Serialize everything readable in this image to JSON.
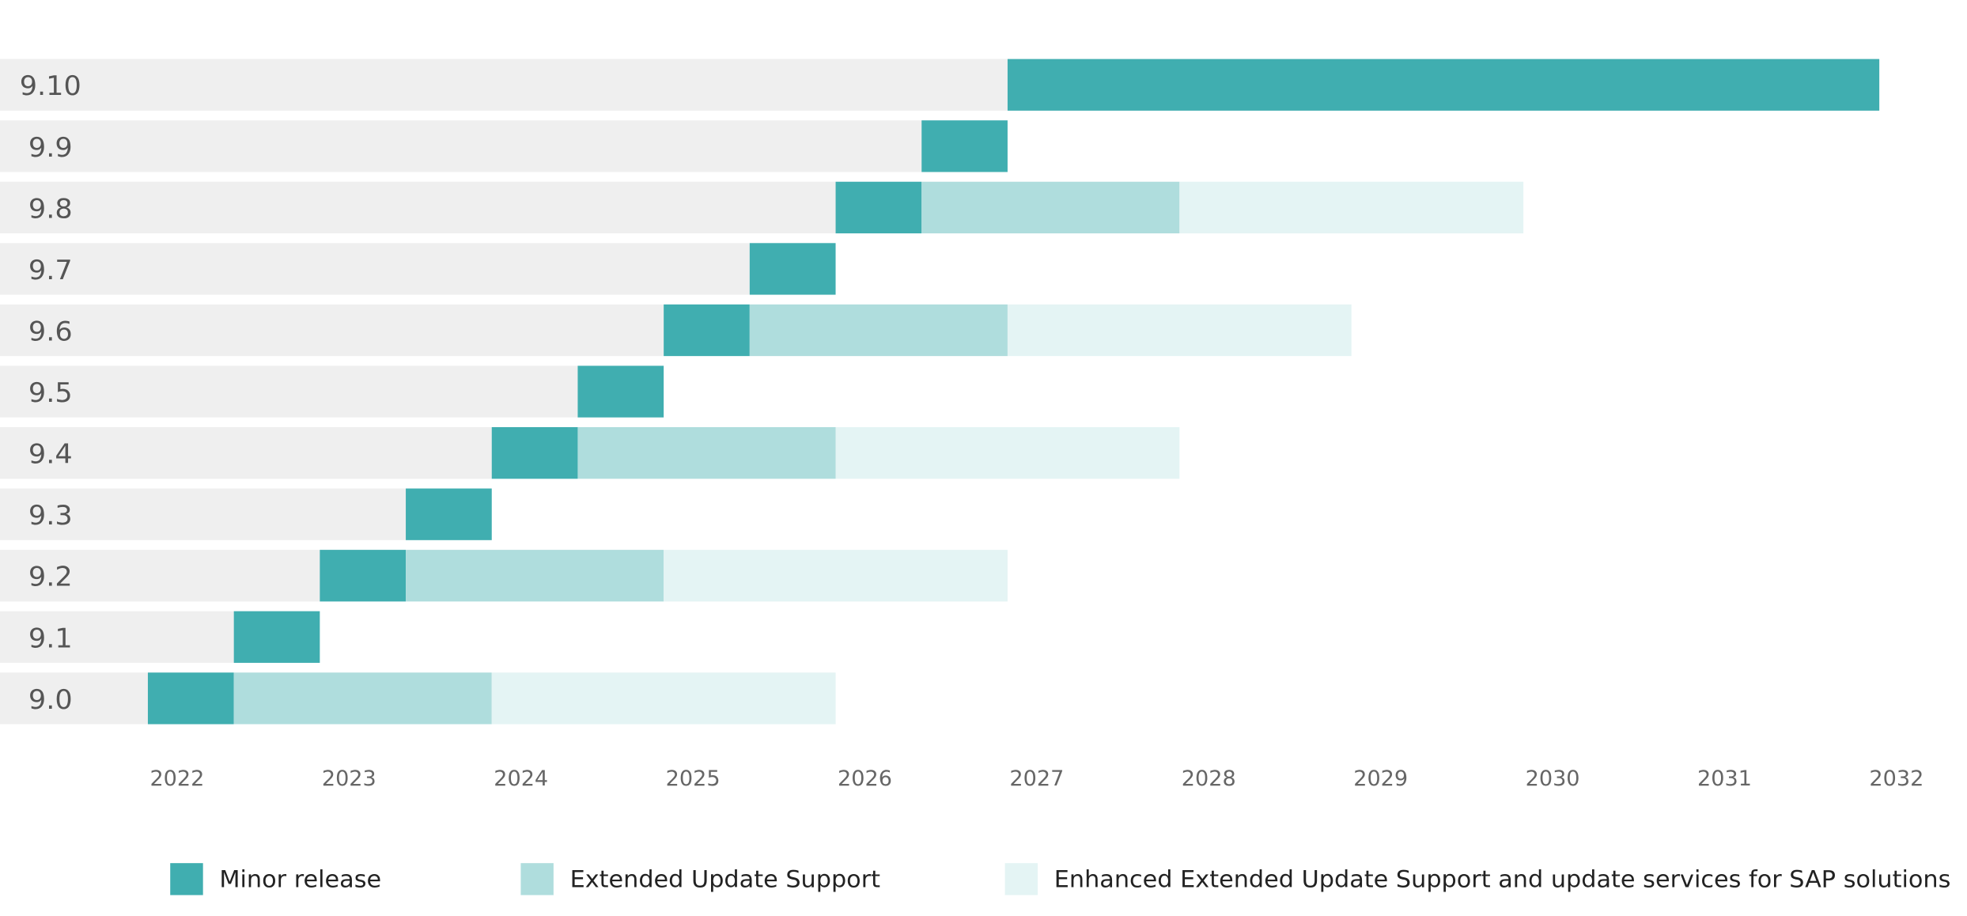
{
  "chart_data": {
    "type": "range-bar",
    "categories": [
      "9.10",
      "9.9",
      "9.8",
      "9.7",
      "9.6",
      "9.5",
      "9.4",
      "9.3",
      "9.2",
      "9.1",
      "9.0"
    ],
    "series": [
      {
        "name": "Minor release",
        "color": "#40aeb0",
        "values": [
          [
            2026.83,
            2031.9
          ],
          [
            2026.33,
            2026.83
          ],
          [
            2025.83,
            2026.33
          ],
          [
            2025.33,
            2025.83
          ],
          [
            2024.83,
            2025.33
          ],
          [
            2024.33,
            2024.83
          ],
          [
            2023.83,
            2024.33
          ],
          [
            2023.33,
            2023.83
          ],
          [
            2022.83,
            2023.33
          ],
          [
            2022.33,
            2022.83
          ],
          [
            2021.83,
            2022.33
          ]
        ]
      },
      {
        "name": "Extended Update Support",
        "color": "#afdddd",
        "values": [
          null,
          null,
          [
            2026.33,
            2027.83
          ],
          null,
          [
            2025.33,
            2026.83
          ],
          null,
          [
            2024.33,
            2025.83
          ],
          null,
          [
            2023.33,
            2024.83
          ],
          null,
          [
            2022.33,
            2023.83
          ]
        ]
      },
      {
        "name": "Enhanced Extended Update Support and update services for SAP solutions",
        "color": "#e4f4f4",
        "values": [
          null,
          null,
          [
            2027.83,
            2029.83
          ],
          null,
          [
            2026.83,
            2028.83
          ],
          null,
          [
            2025.83,
            2027.83
          ],
          null,
          [
            2024.83,
            2026.83
          ],
          null,
          [
            2023.83,
            2025.83
          ]
        ]
      }
    ],
    "xlim": [
      2020.97,
      2032.3
    ],
    "xticks": [
      2022,
      2023,
      2024,
      2025,
      2026,
      2027,
      2028,
      2029,
      2030,
      2031,
      2032
    ],
    "background_color": "#efefef",
    "grid": false
  }
}
